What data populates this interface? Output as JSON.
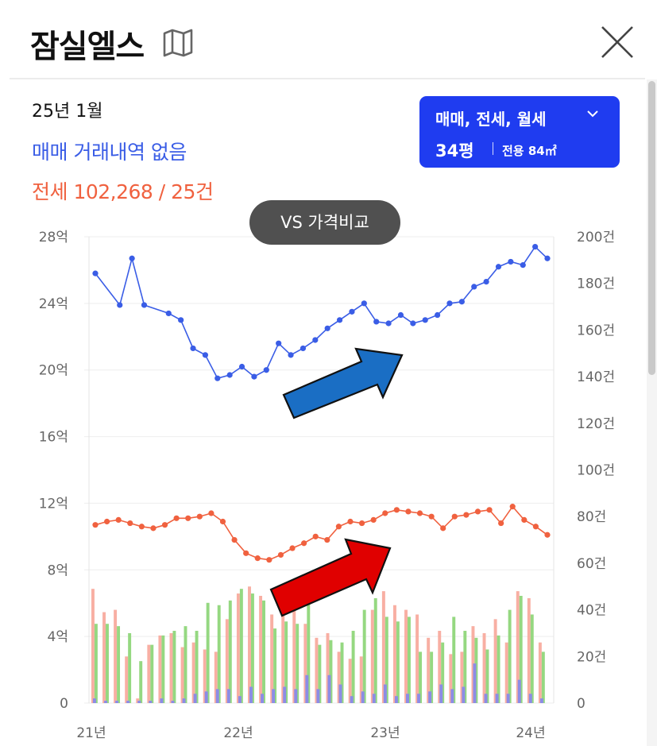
{
  "header": {
    "title": "잠실엘스",
    "map_icon": "map-icon",
    "close_icon": "close-icon"
  },
  "summary": {
    "period": "25년 1월",
    "sale_text": "매매 거래내역 없음",
    "jeonse_text": "전세 102,268 / 25건"
  },
  "filter": {
    "types": "매매, 전세, 월세",
    "size": "34평",
    "area_label": "전용 84㎡"
  },
  "vs_button": {
    "label": "VS 가격비교"
  },
  "colors": {
    "sale": "#3a5de6",
    "jeonse": "#f0613f",
    "accent": "#1f3cf0",
    "arrow_blue": "#1a6ec4",
    "arrow_red": "#e00000"
  },
  "chart_data": {
    "type": "line",
    "x_ticks": [
      "21년",
      "22년",
      "23년",
      "24년"
    ],
    "y_left_ticks": [
      "0",
      "4억",
      "8억",
      "12억",
      "16억",
      "20억",
      "24억",
      "28억"
    ],
    "y_left_range": [
      0,
      28
    ],
    "y_right_ticks": [
      "0",
      "20건",
      "40건",
      "60건",
      "80건",
      "100건",
      "120건",
      "140건",
      "160건",
      "180건",
      "200건"
    ],
    "y_right_range": [
      0,
      200
    ],
    "grid": true,
    "series": [
      {
        "role": "sale_price_line",
        "unit": "억",
        "values": [
          25.8,
          null,
          23.9,
          26.7,
          23.9,
          null,
          23.4,
          23.0,
          21.3,
          20.9,
          19.5,
          19.7,
          20.2,
          19.6,
          20.0,
          21.6,
          20.9,
          21.3,
          21.8,
          22.5,
          23.0,
          23.5,
          24.0,
          22.9,
          22.8,
          23.3,
          22.8,
          23.0,
          23.3,
          24.0,
          24.1,
          25.0,
          25.3,
          26.2,
          26.5,
          26.3,
          27.4,
          26.7
        ]
      },
      {
        "role": "jeonse_price_line",
        "unit": "억",
        "values": [
          10.7,
          10.9,
          11.0,
          10.8,
          10.6,
          10.5,
          10.7,
          11.1,
          11.1,
          11.2,
          11.4,
          10.9,
          9.8,
          9.0,
          8.7,
          8.6,
          8.9,
          9.3,
          9.6,
          10.0,
          9.8,
          10.6,
          10.9,
          10.8,
          11.0,
          11.4,
          11.6,
          11.5,
          11.4,
          11.2,
          10.5,
          11.2,
          11.3,
          11.5,
          11.6,
          10.8,
          11.8,
          11.0,
          10.6,
          10.1
        ]
      },
      {
        "role": "jeonse_volume_bars",
        "unit": "건",
        "values": [
          49,
          39,
          40,
          20,
          2,
          25,
          29,
          30,
          24,
          26,
          23,
          22,
          36,
          47,
          50,
          46,
          38,
          38,
          45,
          34,
          28,
          30,
          22,
          19,
          20,
          40,
          48,
          42,
          40,
          38,
          28,
          31,
          21,
          22,
          33,
          30,
          36,
          26,
          48,
          45,
          26
        ]
      },
      {
        "role": "rent_volume_bars",
        "unit": "건",
        "values": [
          34,
          34,
          33,
          30,
          18,
          25,
          29,
          31,
          33,
          31,
          43,
          42,
          44,
          49,
          47,
          44,
          32,
          35,
          34,
          43,
          25,
          27,
          26,
          31,
          40,
          45,
          37,
          35,
          37,
          22,
          22,
          26,
          37,
          31,
          28,
          23,
          29,
          40,
          46,
          38,
          22
        ]
      },
      {
        "role": "sale_volume_bars",
        "unit": "건",
        "values": [
          2,
          1,
          1,
          1,
          1,
          1,
          2,
          1,
          2,
          4,
          5,
          6,
          6,
          3,
          7,
          4,
          6,
          7,
          6,
          12,
          6,
          12,
          8,
          3,
          5,
          4,
          8,
          3,
          4,
          4,
          5,
          8,
          6,
          7,
          17,
          4,
          4,
          4,
          10,
          4,
          2
        ]
      }
    ]
  }
}
